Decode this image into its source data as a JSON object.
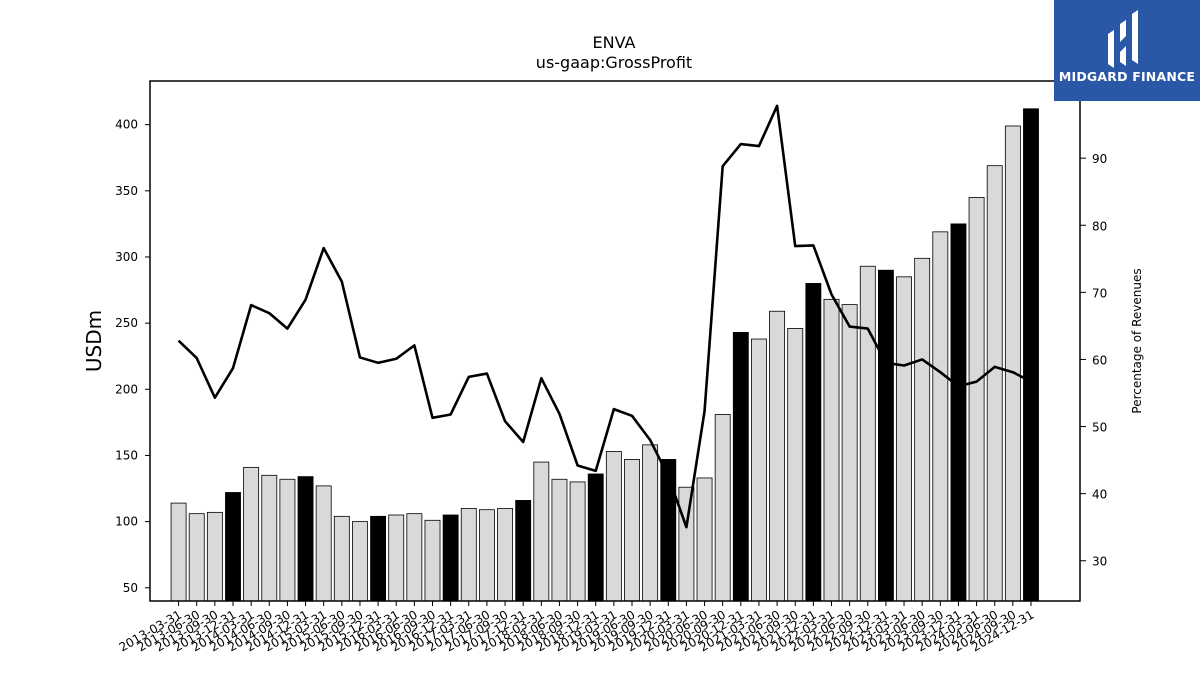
{
  "brand": {
    "name": "MIDGARD FINANCE",
    "bg_color": "#2b58a6"
  },
  "chart_data": {
    "type": "bar",
    "title": "ENVA",
    "subtitle": "us-gaap:GrossProfit",
    "ylabel": "USDm",
    "y2label": "Percentage of Revenues",
    "ylim": [
      40,
      433
    ],
    "y2lim": [
      24,
      101.5
    ],
    "yticks": [
      50,
      100,
      150,
      200,
      250,
      300,
      350,
      400
    ],
    "y2ticks": [
      30,
      40,
      50,
      60,
      70,
      80,
      90
    ],
    "colors": {
      "bar": "#d9d9d9",
      "bar_q4": "#000000",
      "line": "#000000"
    },
    "categories": [
      "2013-03-31",
      "2013-06-30",
      "2013-09-30",
      "2013-12-31",
      "2014-03-31",
      "2014-06-30",
      "2014-09-30",
      "2014-12-31",
      "2015-03-31",
      "2015-06-30",
      "2015-09-30",
      "2015-12-31",
      "2016-03-31",
      "2016-06-30",
      "2016-09-30",
      "2016-12-31",
      "2017-03-31",
      "2017-06-30",
      "2017-09-30",
      "2017-12-31",
      "2018-03-31",
      "2018-06-30",
      "2018-09-30",
      "2018-12-31",
      "2019-03-31",
      "2019-06-30",
      "2019-09-30",
      "2019-12-31",
      "2020-03-31",
      "2020-06-30",
      "2020-09-30",
      "2020-12-31",
      "2021-03-31",
      "2021-06-30",
      "2021-09-30",
      "2021-12-31",
      "2022-03-31",
      "2022-06-30",
      "2022-09-30",
      "2022-12-31",
      "2023-03-31",
      "2023-06-30",
      "2023-09-30",
      "2023-12-31",
      "2024-03-31",
      "2024-06-30",
      "2024-09-30",
      "2024-12-31"
    ],
    "series": [
      {
        "kind": "bar",
        "axis": "left",
        "values": [
          114,
          106,
          107,
          122,
          141,
          135,
          132,
          134,
          127,
          104,
          100,
          104,
          105,
          106,
          101,
          105,
          110,
          109,
          110,
          116,
          145,
          132,
          130,
          136,
          153,
          147,
          158,
          147,
          126,
          133,
          181,
          243,
          238,
          259,
          246,
          280,
          268,
          264,
          293,
          290,
          285,
          299,
          319,
          325,
          345,
          369,
          399,
          412
        ]
      },
      {
        "kind": "line",
        "axis": "right",
        "values": [
          62.8,
          60.2,
          54.3,
          58.7,
          68.1,
          66.9,
          64.6,
          68.9,
          76.6,
          71.6,
          60.3,
          59.5,
          60.1,
          62.1,
          51.3,
          51.8,
          57.4,
          57.9,
          50.8,
          47.7,
          57.2,
          51.9,
          44.2,
          43.4,
          52.6,
          51.6,
          48.0,
          42.6,
          35.0,
          52.3,
          88.8,
          92.1,
          91.8,
          97.8,
          76.9,
          77.0,
          69.7,
          64.9,
          64.6,
          59.5,
          59.1,
          60.0,
          58.1,
          56.0,
          56.7,
          58.9,
          58.1,
          56.7
        ]
      }
    ]
  }
}
